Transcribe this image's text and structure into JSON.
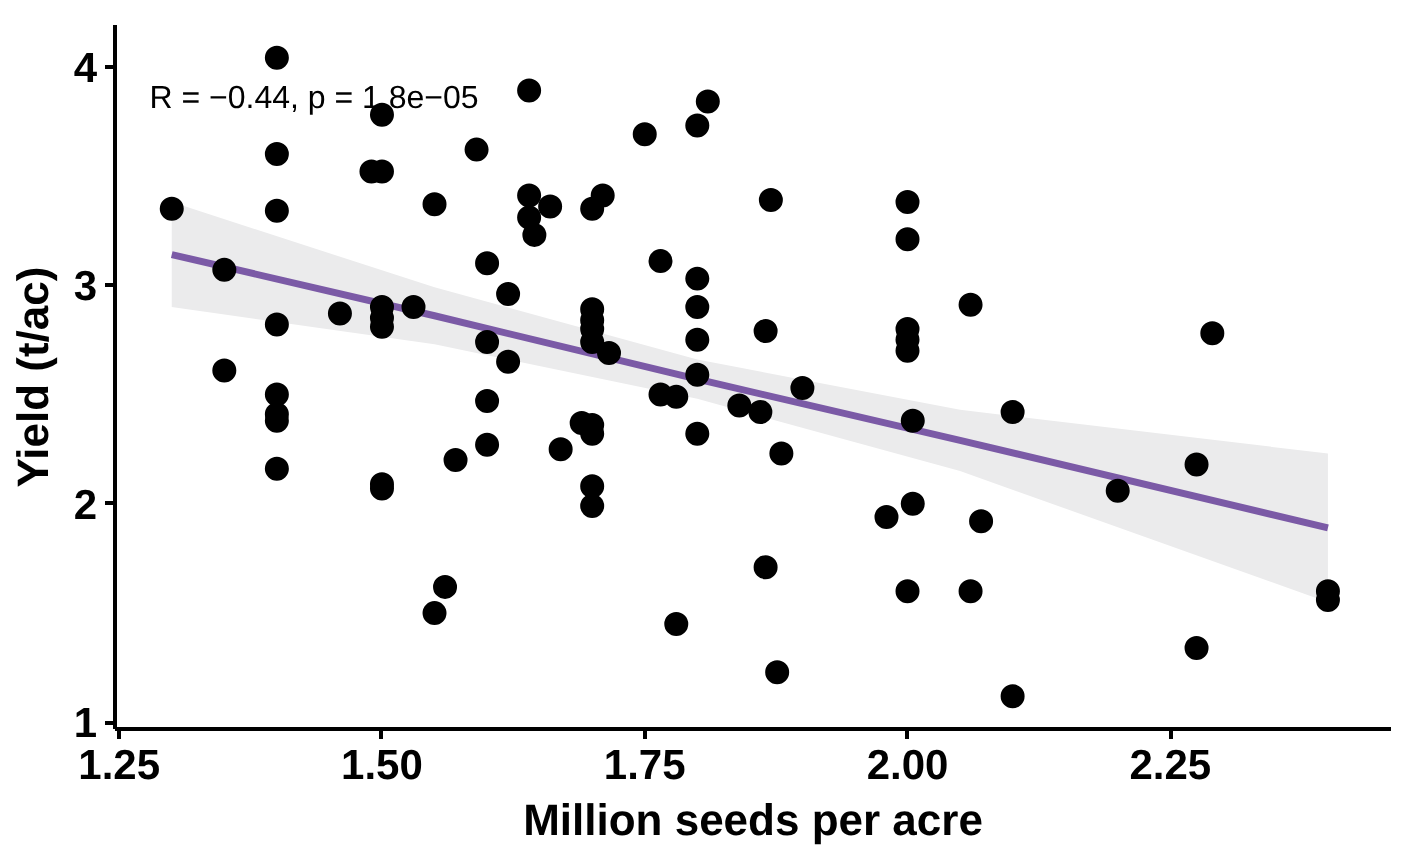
{
  "chart_data": {
    "type": "scatter",
    "xlabel": "Million seeds per acre",
    "ylabel": "Yield (t/ac)",
    "annotations": [
      "R = −0.44, p = 1.8e−05"
    ],
    "xlim": [
      1.246,
      2.46
    ],
    "ylim": [
      0.97,
      4.19
    ],
    "xticks": [
      {
        "value": 1.25,
        "label": "1.25"
      },
      {
        "value": 1.5,
        "label": "1.50"
      },
      {
        "value": 1.75,
        "label": "1.75"
      },
      {
        "value": 2.0,
        "label": "2.00"
      },
      {
        "value": 2.25,
        "label": "2.25"
      }
    ],
    "yticks": [
      1,
      2,
      3,
      4
    ],
    "grid": false,
    "series": [
      {
        "type": "line",
        "marker": "none",
        "color": "#7b5aa6",
        "line_style": "solid",
        "x": [
          1.3,
          1.55,
          1.8,
          2.05,
          2.4
        ],
        "values": [
          3.14,
          2.86,
          2.57,
          2.29,
          1.89
        ],
        "lower": [
          2.9,
          2.73,
          2.48,
          2.15,
          1.55
        ],
        "upper": [
          3.38,
          2.99,
          2.66,
          2.43,
          2.23
        ]
      },
      {
        "type": "scatter",
        "marker": "circle",
        "color": "#000000",
        "x": [
          1.3,
          1.35,
          1.35,
          1.4,
          1.4,
          1.4,
          1.4,
          1.4,
          1.4,
          1.4,
          1.4,
          1.46,
          1.49,
          1.5,
          1.5,
          1.5,
          1.5,
          1.5,
          1.5,
          1.5,
          1.53,
          1.55,
          1.55,
          1.56,
          1.57,
          1.59,
          1.6,
          1.6,
          1.6,
          1.6,
          1.62,
          1.62,
          1.64,
          1.64,
          1.64,
          1.645,
          1.66,
          1.67,
          1.69,
          1.7,
          1.71,
          1.7,
          1.7,
          1.7,
          1.7,
          1.716,
          1.7,
          1.7,
          1.7,
          1.7,
          1.75,
          1.765,
          1.765,
          1.78,
          1.78,
          1.8,
          1.81,
          1.8,
          1.8,
          1.8,
          1.8,
          1.8,
          1.84,
          1.86,
          1.87,
          1.865,
          1.865,
          1.876,
          1.88,
          1.9,
          2.0,
          2.0,
          2.0,
          2.0,
          2.0,
          2.06,
          1.98,
          2.005,
          2.0,
          2.005,
          2.07,
          2.06,
          2.1,
          2.1,
          2.2,
          2.275,
          2.275,
          2.29,
          2.4,
          2.4
        ],
        "values": [
          3.35,
          3.07,
          2.61,
          4.04,
          3.6,
          3.34,
          2.82,
          2.5,
          2.41,
          2.38,
          2.16,
          2.87,
          3.52,
          3.52,
          3.78,
          2.9,
          2.85,
          2.81,
          2.07,
          2.09,
          2.9,
          3.37,
          1.5,
          1.62,
          2.2,
          3.62,
          3.1,
          2.74,
          2.47,
          2.27,
          2.96,
          2.65,
          3.89,
          3.41,
          3.31,
          3.23,
          3.36,
          2.25,
          2.37,
          3.35,
          3.41,
          2.89,
          2.84,
          2.8,
          2.74,
          2.69,
          2.36,
          2.32,
          2.08,
          1.99,
          3.69,
          3.11,
          2.5,
          2.49,
          1.45,
          3.73,
          3.84,
          3.03,
          2.9,
          2.75,
          2.59,
          2.32,
          2.45,
          2.42,
          3.39,
          2.79,
          1.71,
          1.23,
          2.23,
          2.53,
          3.38,
          3.21,
          2.8,
          2.75,
          2.7,
          2.91,
          1.94,
          2.0,
          1.6,
          2.38,
          1.92,
          1.6,
          2.42,
          1.12,
          2.06,
          2.18,
          1.34,
          2.78,
          1.6,
          1.56
        ]
      }
    ]
  }
}
